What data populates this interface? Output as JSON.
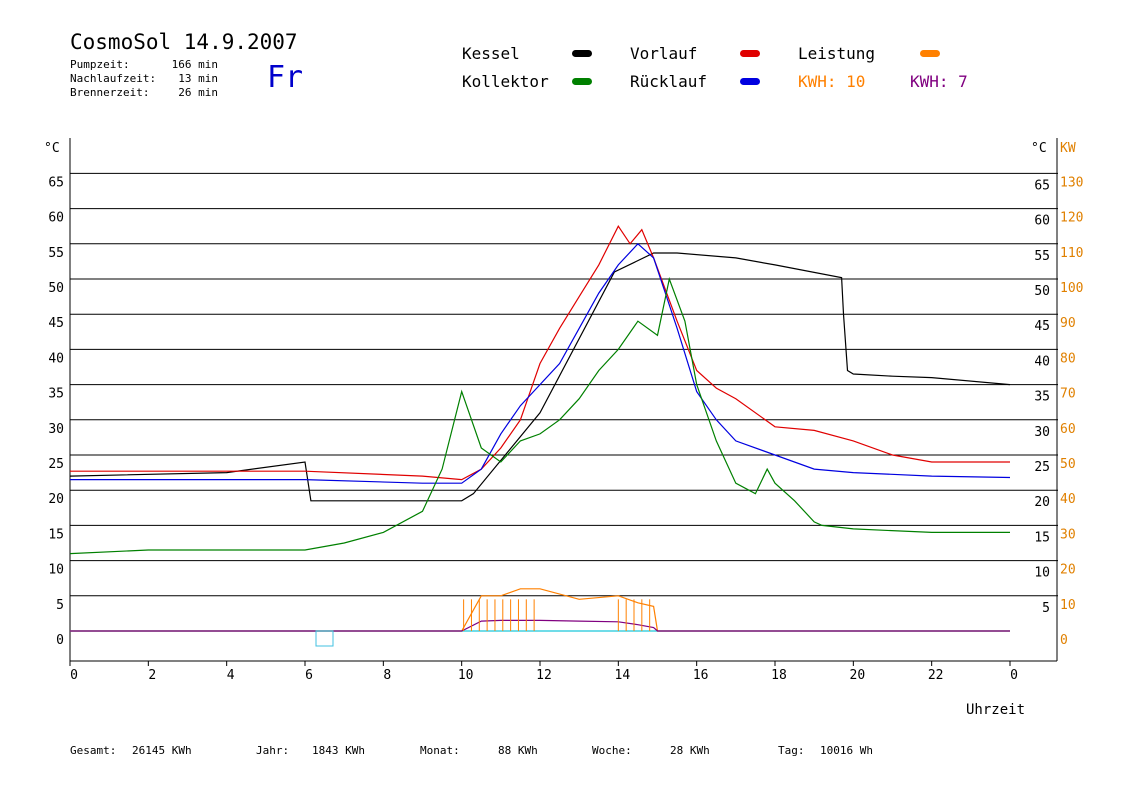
{
  "header": {
    "title": "CosmoSol 14.9.2007",
    "day": "Fr",
    "stats": [
      {
        "label": "Pumpzeit:",
        "value": "166 min"
      },
      {
        "label": "Nachlaufzeit:",
        "value": "13 min"
      },
      {
        "label": "Brennerzeit:",
        "value": "26 min"
      }
    ]
  },
  "legend": {
    "items": [
      {
        "label": "Kessel",
        "color": "#000000"
      },
      {
        "label": "Vorlauf",
        "color": "#e00000"
      },
      {
        "label": "Leistung",
        "color": "#ff8000"
      },
      {
        "label": "Kollektor",
        "color": "#008000"
      },
      {
        "label": "Rücklauf",
        "color": "#0000e0"
      }
    ],
    "kwh": [
      {
        "label": "KWH: 10",
        "color": "#ff8000"
      },
      {
        "label": "KWH: 7",
        "color": "#800080"
      }
    ]
  },
  "footer": [
    {
      "label": "Gesamt:",
      "value": "26145 KWh"
    },
    {
      "label": "Jahr:",
      "value": "1843 KWh"
    },
    {
      "label": "Monat:",
      "value": "88 KWh"
    },
    {
      "label": "Woche:",
      "value": "28 KWh"
    },
    {
      "label": "Tag:",
      "value": "10016 Wh"
    }
  ],
  "chart_data": {
    "type": "line",
    "xlabel": "Uhrzeit",
    "x_ticks": [
      "0",
      "2",
      "4",
      "6",
      "8",
      "10",
      "12",
      "14",
      "16",
      "18",
      "20",
      "22",
      "0"
    ],
    "xlim": [
      0,
      24
    ],
    "y_unit_left": "°C",
    "y_unit_right_temp": "°C",
    "y_unit_right_power": "KW",
    "ylim": [
      -4,
      70
    ],
    "y_ticks_left": [
      "0",
      "5",
      "10",
      "15",
      "20",
      "25",
      "30",
      "35",
      "40",
      "45",
      "50",
      "55",
      "60",
      "65"
    ],
    "y_ticks_right_temp": [
      "5",
      "10",
      "15",
      "20",
      "25",
      "30",
      "35",
      "40",
      "45",
      "50",
      "55",
      "60",
      "65"
    ],
    "y_ticks_right_power": [
      "0",
      "10",
      "20",
      "30",
      "40",
      "50",
      "60",
      "70",
      "80",
      "90",
      "100",
      "110",
      "120",
      "130"
    ],
    "grid": true,
    "series": [
      {
        "name": "Kessel",
        "color": "#000000",
        "x": [
          0,
          4,
          6,
          6.15,
          10,
          10.3,
          12,
          13.9,
          14.9,
          15.5,
          17,
          18,
          19.7,
          19.75,
          19.85,
          20,
          21,
          22,
          24
        ],
        "y": [
          22,
          22.5,
          24,
          18.5,
          18.5,
          19.5,
          31,
          51,
          53.7,
          53.7,
          53,
          52,
          50.2,
          45,
          37,
          36.5,
          36.2,
          36,
          35
        ]
      },
      {
        "name": "Vorlauf",
        "color": "#e00000",
        "x": [
          0,
          6,
          9,
          10,
          10.5,
          11,
          11.5,
          12,
          12.5,
          13,
          13.5,
          14,
          14.3,
          14.6,
          14.9,
          15.5,
          16,
          16.5,
          17,
          18,
          19,
          20,
          21,
          22,
          24
        ],
        "y": [
          22.7,
          22.7,
          22,
          21.5,
          23,
          26,
          30,
          38,
          43,
          47.5,
          52,
          57.5,
          55,
          57,
          53,
          44,
          37,
          34.5,
          33,
          29,
          28.5,
          27,
          25,
          24,
          24
        ]
      },
      {
        "name": "Rücklauf",
        "color": "#0000e0",
        "x": [
          0,
          6,
          9,
          10,
          10.5,
          11,
          11.5,
          12,
          12.5,
          13,
          13.5,
          14,
          14.5,
          14.9,
          15.5,
          16,
          16.5,
          17,
          18,
          19,
          20,
          22,
          24
        ],
        "y": [
          21.5,
          21.5,
          21,
          21,
          23,
          28,
          32,
          35,
          38,
          43,
          48,
          52,
          55,
          53,
          43,
          34,
          30,
          27,
          25,
          23,
          22.5,
          22,
          21.8
        ]
      },
      {
        "name": "Kollektor",
        "color": "#008000",
        "x": [
          0,
          2,
          4,
          6,
          7,
          8,
          9,
          9.5,
          10,
          10.5,
          11,
          11.5,
          12,
          12.5,
          13,
          13.5,
          14,
          14.5,
          15,
          15.3,
          15.7,
          16,
          16.5,
          17,
          17.5,
          17.8,
          18,
          18.5,
          19,
          19.2,
          20,
          22,
          24
        ],
        "y": [
          11,
          11.5,
          11.5,
          11.5,
          12.5,
          14,
          17,
          23,
          34,
          26,
          24,
          27,
          28,
          30,
          33,
          37,
          40,
          44,
          42,
          50,
          44,
          35,
          27,
          21,
          19.5,
          23,
          21,
          18.5,
          15.5,
          15,
          14.5,
          14,
          14
        ]
      },
      {
        "name": "Leistung",
        "color": "#ff8000",
        "unit": "KW",
        "x": [
          0,
          10,
          10.5,
          11,
          11.5,
          12,
          13,
          14,
          14.5,
          14.9,
          15,
          24
        ],
        "y": [
          0,
          0,
          5,
          5,
          6,
          6,
          4.5,
          5,
          4,
          3.5,
          0,
          0
        ]
      },
      {
        "name": "KWH",
        "color": "#800080",
        "unit": "KW",
        "x": [
          0,
          10,
          10.5,
          11,
          11.5,
          12,
          13,
          14,
          14.5,
          14.9,
          15,
          24
        ],
        "y": [
          0,
          0,
          1.4,
          1.5,
          1.5,
          1.5,
          1.4,
          1.3,
          0.9,
          0.5,
          0,
          0
        ]
      }
    ],
    "pump_spikes": {
      "times": [
        10.05,
        10.25,
        10.45,
        10.65,
        10.85,
        11.05,
        11.25,
        11.45,
        11.65,
        11.85,
        14.0,
        14.2,
        14.4,
        14.6,
        14.8
      ]
    }
  }
}
